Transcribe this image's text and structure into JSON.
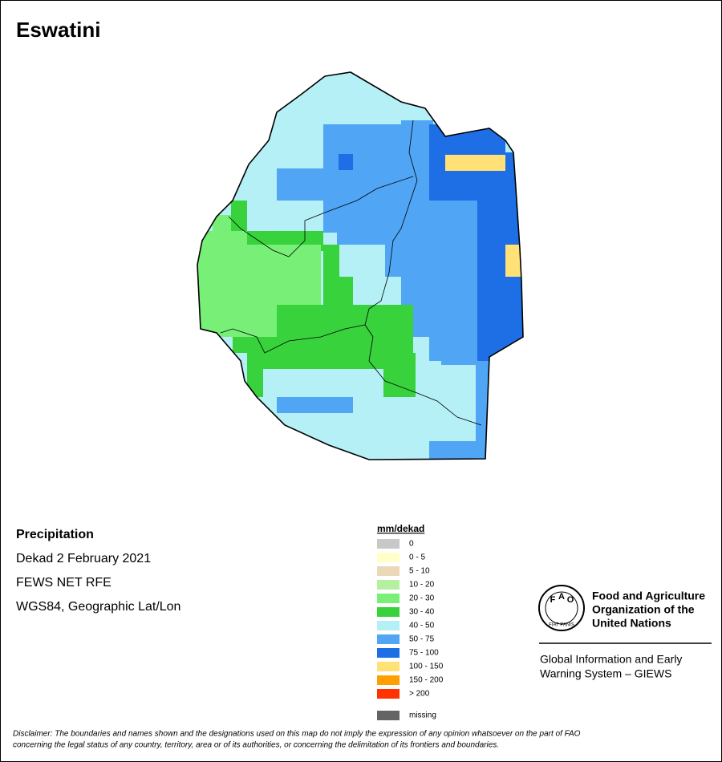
{
  "title": "Eswatini",
  "info": {
    "heading": "Precipitation",
    "lines": [
      "Dekad 2 February 2021",
      "FEWS NET RFE",
      "WGS84, Geographic Lat/Lon"
    ]
  },
  "legend": {
    "title": "mm/dekad",
    "items": [
      {
        "label": "0",
        "color": "#c8c8c8"
      },
      {
        "label": "0 - 5",
        "color": "#ffffc8"
      },
      {
        "label": "5 - 10",
        "color": "#ebd8b8"
      },
      {
        "label": "10 - 20",
        "color": "#b4f0a0"
      },
      {
        "label": "20 - 30",
        "color": "#78f078"
      },
      {
        "label": "30 - 40",
        "color": "#37d23c"
      },
      {
        "label": "40 - 50",
        "color": "#b4f0f5"
      },
      {
        "label": "50 - 75",
        "color": "#50a5f5"
      },
      {
        "label": "75 - 100",
        "color": "#1e6ee6"
      },
      {
        "label": "100 - 150",
        "color": "#ffe178"
      },
      {
        "label": "150 - 200",
        "color": "#ffa000"
      },
      {
        "label": "> 200",
        "color": "#ff3200"
      }
    ],
    "missing": {
      "label": "missing",
      "color": "#646464"
    }
  },
  "logo": {
    "letters": [
      "F",
      "A",
      "O"
    ],
    "motto": "FIAT PANIS",
    "fao_name": [
      "Food and Agriculture",
      "Organization of the",
      "United Nations"
    ],
    "giews": [
      "Global Information and Early",
      "Warning System – GIEWS"
    ]
  },
  "disclaimer": [
    "Disclaimer: The boundaries and names shown and the designations used on this map do not imply the expression of any opinion whatsoever on the part of FAO",
    "concerning the legal status of any country, territory, area or of its authorities, or concerning the delimitation of its frontiers and boundaries."
  ]
}
